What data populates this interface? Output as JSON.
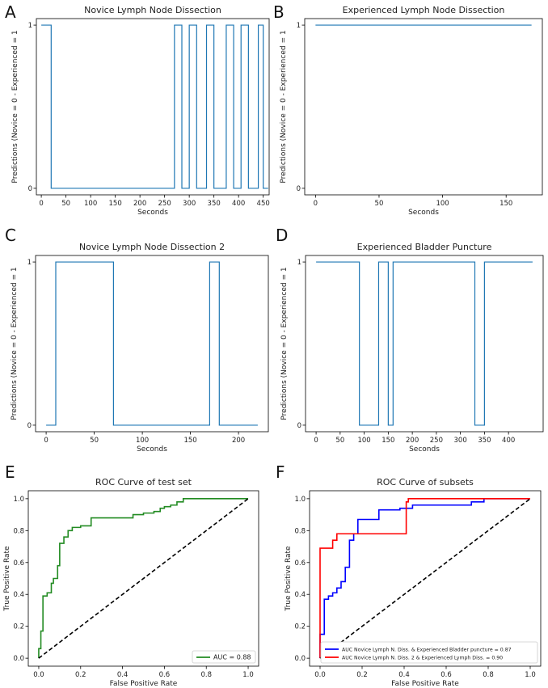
{
  "colors": {
    "line": "#1f77b4",
    "green": "#228b22",
    "blue": "#0000ff",
    "red": "#ff0000",
    "diag": "#000000"
  },
  "chart_data": [
    {
      "panel": "A",
      "type": "line",
      "title": "Novice Lymph Node Dissection",
      "xlabel": "Seconds",
      "ylabel": "Predictions (Novice = 0 - Experienced = 1",
      "xlim": [
        -10,
        462
      ],
      "ylim": [
        -0.04,
        1.04
      ],
      "xticks": [
        0,
        50,
        100,
        150,
        200,
        250,
        300,
        350,
        400,
        450
      ],
      "yticks": [
        0,
        1
      ],
      "x": [
        0,
        20,
        20,
        270,
        270,
        285,
        285,
        300,
        300,
        315,
        315,
        335,
        335,
        350,
        350,
        375,
        375,
        390,
        390,
        405,
        405,
        420,
        420,
        440,
        440,
        450,
        450,
        460
      ],
      "y": [
        1,
        1,
        0,
        0,
        1,
        1,
        0,
        0,
        1,
        1,
        0,
        0,
        1,
        1,
        0,
        0,
        1,
        1,
        0,
        0,
        1,
        1,
        0,
        0,
        1,
        1,
        0,
        0
      ]
    },
    {
      "panel": "B",
      "type": "line",
      "title": "Experienced Lymph Node Dissection",
      "xlabel": "Seconds",
      "ylabel": "Predictions (Novice = 0 - Experienced = 1",
      "xlim": [
        -8.5,
        178.5
      ],
      "ylim": [
        -0.04,
        1.04
      ],
      "xticks": [
        0,
        50,
        100,
        150
      ],
      "yticks": [
        0,
        1
      ],
      "x": [
        0,
        170
      ],
      "y": [
        1,
        1
      ]
    },
    {
      "panel": "C",
      "type": "line",
      "title": "Novice Lymph Node Dissection 2",
      "xlabel": "Seconds",
      "ylabel": "Predictions (Novice = 0 - Experienced = 1",
      "xlim": [
        -11,
        231
      ],
      "ylim": [
        -0.04,
        1.04
      ],
      "xticks": [
        0,
        50,
        100,
        150,
        200
      ],
      "yticks": [
        0,
        1
      ],
      "x": [
        0,
        10,
        10,
        70,
        70,
        170,
        170,
        180,
        180,
        220
      ],
      "y": [
        0,
        0,
        1,
        1,
        0,
        0,
        1,
        1,
        0,
        0
      ]
    },
    {
      "panel": "D",
      "type": "line",
      "title": "Experienced Bladder Puncture",
      "xlabel": "Seconds",
      "ylabel": "Predictions (Novice = 0 - Experienced = 1",
      "xlim": [
        -22,
        472
      ],
      "ylim": [
        -0.04,
        1.04
      ],
      "xticks": [
        0,
        50,
        100,
        150,
        200,
        250,
        300,
        350,
        400
      ],
      "yticks": [
        0,
        1
      ],
      "x": [
        0,
        90,
        90,
        130,
        130,
        150,
        150,
        160,
        160,
        330,
        330,
        350,
        350,
        450
      ],
      "y": [
        1,
        1,
        0,
        0,
        1,
        1,
        0,
        0,
        1,
        1,
        0,
        0,
        1,
        1
      ]
    },
    {
      "panel": "E",
      "type": "line",
      "title": "ROC Curve of test set",
      "xlabel": "False Positive Rate",
      "ylabel": "True Positive Rate",
      "xlim": [
        -0.05,
        1.05
      ],
      "ylim": [
        -0.05,
        1.05
      ],
      "xticks": [
        "0.0",
        "0.2",
        "0.4",
        "0.6",
        "0.8",
        "1.0"
      ],
      "yticks": [
        "0.0",
        "0.2",
        "0.4",
        "0.6",
        "0.8",
        "1.0"
      ],
      "series": [
        {
          "name": "AUC = 0.88",
          "color": "green",
          "x": [
            0,
            0,
            0.01,
            0.01,
            0.02,
            0.02,
            0.04,
            0.04,
            0.06,
            0.06,
            0.07,
            0.07,
            0.09,
            0.09,
            0.1,
            0.1,
            0.12,
            0.12,
            0.14,
            0.14,
            0.16,
            0.16,
            0.2,
            0.2,
            0.25,
            0.25,
            0.45,
            0.45,
            0.5,
            0.5,
            0.55,
            0.55,
            0.58,
            0.58,
            0.6,
            0.6,
            0.63,
            0.63,
            0.66,
            0.66,
            0.69,
            0.69,
            1.0
          ],
          "y": [
            0,
            0.06,
            0.06,
            0.17,
            0.17,
            0.39,
            0.39,
            0.41,
            0.41,
            0.47,
            0.47,
            0.5,
            0.5,
            0.58,
            0.58,
            0.72,
            0.72,
            0.76,
            0.76,
            0.8,
            0.8,
            0.82,
            0.82,
            0.83,
            0.83,
            0.88,
            0.88,
            0.9,
            0.9,
            0.91,
            0.91,
            0.92,
            0.92,
            0.94,
            0.94,
            0.95,
            0.95,
            0.96,
            0.96,
            0.98,
            0.98,
            1.0,
            1.0
          ]
        },
        {
          "name": "chance",
          "color": "diag",
          "dashed": true,
          "x": [
            0,
            1
          ],
          "y": [
            0,
            1
          ]
        }
      ],
      "legend_pos": "lower-right"
    },
    {
      "panel": "F",
      "type": "line",
      "title": "ROC Curve of subsets",
      "xlabel": "False Positive Rate",
      "ylabel": "True Positive Rate",
      "xlim": [
        -0.05,
        1.05
      ],
      "ylim": [
        -0.05,
        1.05
      ],
      "xticks": [
        "0.0",
        "0.2",
        "0.4",
        "0.6",
        "0.8",
        "1.0"
      ],
      "yticks": [
        "0.0",
        "0.2",
        "0.4",
        "0.6",
        "0.8",
        "1.0"
      ],
      "series": [
        {
          "name": "AUC Novice Lymph N. Diss. & Experienced Bladder puncture = 0.87",
          "color": "blue",
          "x": [
            0,
            0,
            0.02,
            0.02,
            0.04,
            0.04,
            0.06,
            0.06,
            0.08,
            0.08,
            0.1,
            0.1,
            0.12,
            0.12,
            0.14,
            0.14,
            0.16,
            0.16,
            0.18,
            0.18,
            0.28,
            0.28,
            0.38,
            0.38,
            0.44,
            0.44,
            0.72,
            0.72,
            0.78,
            0.78,
            1.0
          ],
          "y": [
            0,
            0.15,
            0.15,
            0.37,
            0.37,
            0.39,
            0.39,
            0.41,
            0.41,
            0.44,
            0.44,
            0.48,
            0.48,
            0.57,
            0.57,
            0.74,
            0.74,
            0.78,
            0.78,
            0.87,
            0.87,
            0.93,
            0.93,
            0.94,
            0.94,
            0.96,
            0.96,
            0.98,
            0.98,
            1.0,
            1.0
          ]
        },
        {
          "name": "AUC Novice Lymph N. Diss. 2 & Experienced Lymph Diss. = 0.90",
          "color": "red",
          "x": [
            0,
            0,
            0.06,
            0.06,
            0.08,
            0.08,
            0.41,
            0.41,
            0.42,
            0.42,
            1.0
          ],
          "y": [
            0,
            0.69,
            0.69,
            0.74,
            0.74,
            0.78,
            0.78,
            0.98,
            0.98,
            1.0,
            1.0
          ]
        },
        {
          "name": "chance",
          "color": "diag",
          "dashed": true,
          "x": [
            0,
            1
          ],
          "y": [
            0,
            1
          ]
        }
      ],
      "legend_pos": "lower-right"
    }
  ]
}
